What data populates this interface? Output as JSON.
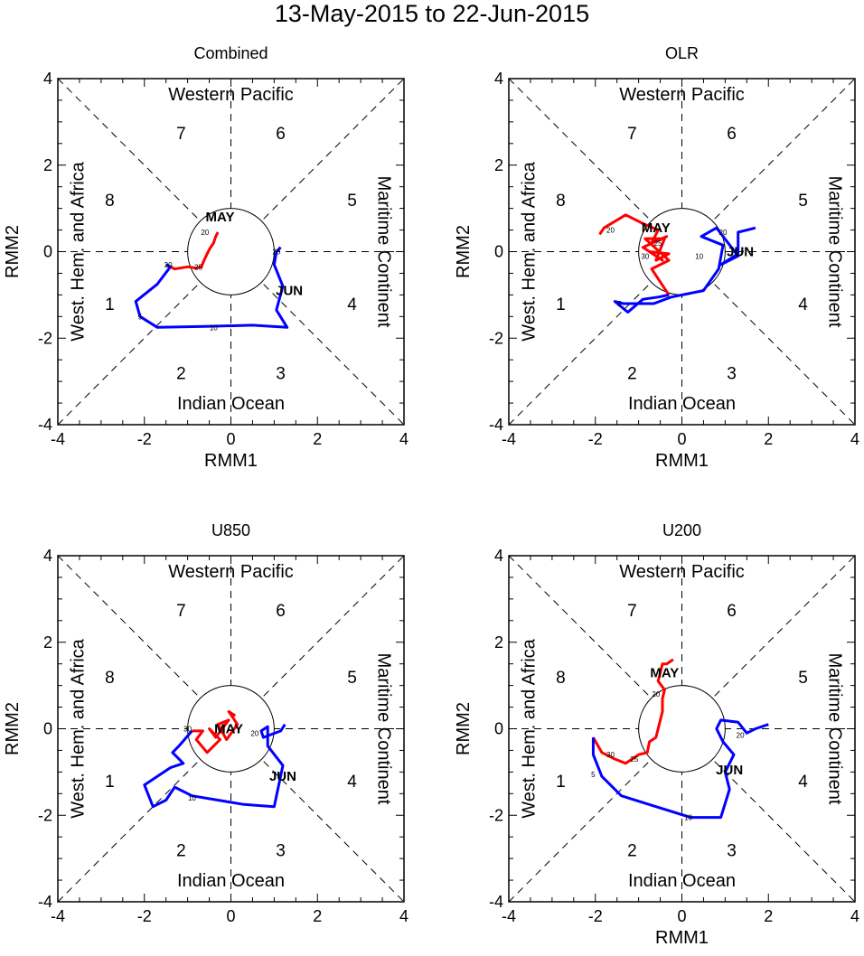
{
  "title": "13-May-2015 to 22-Jun-2015",
  "colors": {
    "may": "#ff0000",
    "jun": "#0000ff",
    "axes": "#000000"
  },
  "chart_data": [
    {
      "type": "line",
      "title": "Combined",
      "xlabel": "RMM1",
      "ylabel": "RMM2",
      "xlim": [
        -4,
        4
      ],
      "ylim": [
        -4,
        4
      ],
      "ticks": [
        "-4",
        "-2",
        "0",
        "2",
        "4"
      ],
      "show_xlabel": true,
      "regions": {
        "top": "Western Pacific",
        "bottom": "Indian Ocean",
        "left": "West. Hem. and Africa",
        "right": "Maritime Continent"
      },
      "phases": [
        "1",
        "2",
        "3",
        "4",
        "5",
        "6",
        "7",
        "8"
      ],
      "series": [
        {
          "name": "MAY",
          "color": "#ff0000",
          "month_label_at": [
            -0.25,
            0.8
          ],
          "x": [
            -0.3,
            -0.35,
            -0.4,
            -0.5,
            -0.55,
            -0.62,
            -0.68,
            -0.8,
            -1.0,
            -1.3,
            -1.5
          ],
          "y": [
            0.45,
            0.35,
            0.2,
            0.05,
            -0.05,
            -0.2,
            -0.35,
            -0.38,
            -0.35,
            -0.4,
            -0.3
          ]
        },
        {
          "name": "JUN",
          "color": "#0000ff",
          "month_label_at": [
            1.35,
            -0.9
          ],
          "x": [
            -1.5,
            -1.4,
            -1.7,
            -2.2,
            -2.1,
            -1.7,
            -0.6,
            0.5,
            1.3,
            1.05,
            1.2,
            1.0,
            1.05,
            1.15
          ],
          "y": [
            -0.3,
            -0.35,
            -0.75,
            -1.15,
            -1.5,
            -1.75,
            -1.73,
            -1.7,
            -1.75,
            -1.35,
            -0.8,
            -0.3,
            0.0,
            0.1
          ]
        }
      ],
      "day_labels": [
        {
          "text": "20",
          "at": [
            -0.6,
            0.45
          ]
        },
        {
          "text": "25",
          "at": [
            -0.75,
            -0.35
          ]
        },
        {
          "text": "30",
          "at": [
            -1.45,
            -0.3
          ]
        },
        {
          "text": "5",
          "at": [
            -2.1,
            -1.5
          ]
        },
        {
          "text": "10",
          "at": [
            -0.4,
            -1.75
          ]
        },
        {
          "text": "20",
          "at": [
            1.05,
            0.0
          ]
        }
      ]
    },
    {
      "type": "line",
      "title": "OLR",
      "xlabel": "RMM1",
      "ylabel": "RMM2",
      "xlim": [
        -4,
        4
      ],
      "ylim": [
        -4,
        4
      ],
      "ticks": [
        "-4",
        "-2",
        "0",
        "2",
        "4"
      ],
      "show_xlabel": true,
      "regions": {
        "top": "Western Pacific",
        "bottom": "Indian Ocean",
        "left": "West. Hem. and Africa",
        "right": "Maritime Continent"
      },
      "phases": [
        "1",
        "2",
        "3",
        "4",
        "5",
        "6",
        "7",
        "8"
      ],
      "series": [
        {
          "name": "MAY",
          "color": "#ff0000",
          "month_label_at": [
            -0.6,
            0.55
          ],
          "x": [
            -1.9,
            -1.8,
            -1.3,
            -0.9,
            -0.55,
            -0.7,
            -0.35,
            -0.9,
            -0.45,
            -0.75,
            -0.3,
            -0.6,
            -0.4,
            -0.85,
            -0.3,
            -0.7,
            -0.3
          ],
          "y": [
            0.4,
            0.55,
            0.85,
            0.65,
            0.5,
            0.2,
            0.35,
            0.1,
            -0.2,
            0.0,
            -0.05,
            -0.2,
            0.3,
            0.3,
            -0.2,
            -0.4,
            -1.0
          ]
        },
        {
          "name": "JUN",
          "color": "#0000ff",
          "month_label_at": [
            1.35,
            0.0
          ],
          "x": [
            -0.3,
            -0.55,
            -0.9,
            -1.25,
            -1.55,
            -1.35,
            -0.65,
            -0.25,
            0.5,
            0.85,
            0.95,
            0.45,
            0.8,
            1.3,
            0.9,
            1.3,
            1.3,
            1.7
          ],
          "y": [
            -1.0,
            -1.05,
            -1.1,
            -1.4,
            -1.15,
            -1.2,
            -1.2,
            -1.05,
            -0.9,
            -0.4,
            0.15,
            0.35,
            0.55,
            -0.1,
            -0.3,
            -0.05,
            0.45,
            0.55
          ]
        }
      ],
      "day_labels": [
        {
          "text": "20",
          "at": [
            -1.65,
            0.5
          ]
        },
        {
          "text": "25",
          "at": [
            -0.55,
            0.2
          ]
        },
        {
          "text": "30",
          "at": [
            -0.85,
            -0.1
          ]
        },
        {
          "text": "5",
          "at": [
            -1.45,
            -1.2
          ]
        },
        {
          "text": "10",
          "at": [
            0.4,
            -0.1
          ]
        },
        {
          "text": "20",
          "at": [
            0.95,
            0.45
          ]
        }
      ]
    },
    {
      "type": "line",
      "title": "U850",
      "xlabel": "RMM1",
      "ylabel": "RMM2",
      "xlim": [
        -4,
        4
      ],
      "ylim": [
        -4,
        4
      ],
      "ticks": [
        "-4",
        "-2",
        "0",
        "2",
        "4"
      ],
      "show_xlabel": false,
      "regions": {
        "top": "Western Pacific",
        "bottom": "Indian Ocean",
        "left": "West. Hem. and Africa",
        "right": "Maritime Continent"
      },
      "phases": [
        "1",
        "2",
        "3",
        "4",
        "5",
        "6",
        "7",
        "8"
      ],
      "series": [
        {
          "name": "MAY",
          "color": "#ff0000",
          "month_label_at": [
            -0.05,
            0.0
          ],
          "x": [
            0.1,
            -0.05,
            0.15,
            -0.1,
            -0.3,
            -0.05,
            -0.35,
            -0.5,
            -0.25,
            -0.55,
            -0.8,
            -0.65,
            -0.9
          ],
          "y": [
            0.3,
            0.4,
            0.1,
            -0.25,
            0.1,
            0.2,
            -0.2,
            0.0,
            -0.25,
            -0.55,
            -0.25,
            -0.05,
            -0.05
          ]
        },
        {
          "name": "JUN",
          "color": "#0000ff",
          "month_label_at": [
            1.2,
            -1.1
          ],
          "x": [
            -0.9,
            -1.2,
            -1.35,
            -1.1,
            -1.4,
            -2.0,
            -1.8,
            -1.5,
            -1.3,
            -0.9,
            0.3,
            1.0,
            1.2,
            0.85,
            0.85,
            0.7,
            0.75,
            1.15,
            1.25
          ],
          "y": [
            -0.05,
            -0.4,
            -0.55,
            -0.8,
            -0.9,
            -1.3,
            -1.8,
            -1.65,
            -1.35,
            -1.55,
            -1.75,
            -1.8,
            -0.85,
            -0.4,
            0.05,
            -0.05,
            -0.2,
            -0.05,
            0.1
          ]
        }
      ],
      "day_labels": [
        {
          "text": "30",
          "at": [
            -1.0,
            0.0
          ]
        },
        {
          "text": "10",
          "at": [
            -0.9,
            -1.6
          ]
        },
        {
          "text": "20",
          "at": [
            0.55,
            -0.1
          ]
        }
      ]
    },
    {
      "type": "line",
      "title": "U200",
      "xlabel": "RMM1",
      "ylabel": "RMM2",
      "xlim": [
        -4,
        4
      ],
      "ylim": [
        -4,
        4
      ],
      "ticks": [
        "-4",
        "-2",
        "0",
        "2",
        "4"
      ],
      "show_xlabel": true,
      "regions": {
        "top": "Western Pacific",
        "bottom": "Indian Ocean",
        "left": "West. Hem. and Africa",
        "right": "Maritime Continent"
      },
      "phases": [
        "1",
        "2",
        "3",
        "4",
        "5",
        "6",
        "7",
        "8"
      ],
      "series": [
        {
          "name": "MAY",
          "color": "#ff0000",
          "month_label_at": [
            -0.4,
            1.3
          ],
          "x": [
            -0.2,
            -0.35,
            -0.45,
            -0.55,
            -0.4,
            -0.45,
            -0.45,
            -0.6,
            -0.75,
            -0.8,
            -1.0,
            -1.3,
            -1.55,
            -1.85,
            -2.05
          ],
          "y": [
            1.6,
            1.5,
            1.5,
            1.1,
            0.9,
            0.7,
            0.4,
            -0.2,
            -0.3,
            -0.55,
            -0.6,
            -0.8,
            -0.7,
            -0.55,
            -0.2
          ]
        },
        {
          "name": "JUN",
          "color": "#0000ff",
          "month_label_at": [
            1.1,
            -0.95
          ],
          "x": [
            -2.05,
            -2.05,
            -1.85,
            -1.4,
            -0.6,
            0.2,
            0.9,
            1.1,
            1.0,
            1.2,
            0.95,
            0.8,
            0.9,
            1.3,
            1.5,
            1.7,
            2.0
          ],
          "y": [
            -0.2,
            -0.6,
            -1.1,
            -1.55,
            -1.8,
            -2.05,
            -2.05,
            -1.4,
            -1.0,
            -0.6,
            -0.3,
            0.0,
            0.2,
            0.15,
            -0.1,
            0.0,
            0.1
          ]
        }
      ],
      "day_labels": [
        {
          "text": "20",
          "at": [
            -0.6,
            0.8
          ]
        },
        {
          "text": "25",
          "at": [
            -1.1,
            -0.7
          ]
        },
        {
          "text": "30",
          "at": [
            -1.65,
            -0.6
          ]
        },
        {
          "text": "5",
          "at": [
            -2.05,
            -1.05
          ]
        },
        {
          "text": "10",
          "at": [
            0.15,
            -2.05
          ]
        },
        {
          "text": "20",
          "at": [
            1.35,
            -0.15
          ]
        }
      ]
    }
  ]
}
